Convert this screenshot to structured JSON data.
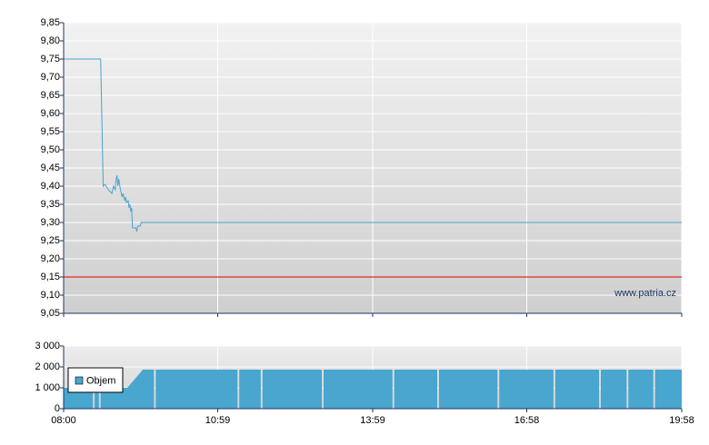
{
  "chart_data": [
    {
      "type": "line",
      "series": [
        {
          "color": "#4aa3cc",
          "x": [
            "08:00",
            "08:43",
            "08:46",
            "08:48",
            "08:52",
            "08:56",
            "08:58",
            "09:00",
            "09:01",
            "09:02",
            "09:03",
            "09:04",
            "09:06",
            "09:08",
            "09:09",
            "09:11",
            "09:12",
            "09:13",
            "09:15",
            "09:16",
            "09:17",
            "09:18",
            "09:19",
            "09:20",
            "09:24",
            "09:25",
            "09:26",
            "09:29",
            "09:30",
            "19:58"
          ],
          "values": [
            9.75,
            9.75,
            9.4,
            9.405,
            9.39,
            9.38,
            9.4,
            9.39,
            9.42,
            9.43,
            9.4,
            9.42,
            9.39,
            9.37,
            9.38,
            9.36,
            9.37,
            9.355,
            9.36,
            9.34,
            9.35,
            9.33,
            9.34,
            9.285,
            9.285,
            9.275,
            9.29,
            9.29,
            9.3,
            9.3
          ]
        }
      ],
      "reference_line": {
        "value": 9.15,
        "color": "#e00000"
      },
      "annotation": "www.patria.cz",
      "ylim": [
        9.05,
        9.85
      ],
      "yticks": [
        {
          "value": 9.05,
          "label": "9,05"
        },
        {
          "value": 9.1,
          "label": "9,10"
        },
        {
          "value": 9.15,
          "label": "9,15"
        },
        {
          "value": 9.2,
          "label": "9,20"
        },
        {
          "value": 9.25,
          "label": "9,25"
        },
        {
          "value": 9.3,
          "label": "9,30"
        },
        {
          "value": 9.35,
          "label": "9,35"
        },
        {
          "value": 9.4,
          "label": "9,40"
        },
        {
          "value": 9.45,
          "label": "9,45"
        },
        {
          "value": 9.5,
          "label": "9,50"
        },
        {
          "value": 9.55,
          "label": "9,55"
        },
        {
          "value": 9.6,
          "label": "9,60"
        },
        {
          "value": 9.65,
          "label": "9,65"
        },
        {
          "value": 9.7,
          "label": "9,70"
        },
        {
          "value": 9.75,
          "label": "9,75"
        },
        {
          "value": 9.8,
          "label": "9,80"
        },
        {
          "value": 9.85,
          "label": "9,85"
        }
      ],
      "xlim": [
        "08:00",
        "19:58"
      ],
      "xticks": [
        "08:00",
        "10:59",
        "13:59",
        "16:58",
        "19:58"
      ],
      "grid": true
    },
    {
      "type": "area",
      "series": [
        {
          "name": "Objem",
          "color": "#48a6cf",
          "x": [
            "08:00",
            "08:34",
            "08:35",
            "08:36",
            "08:41",
            "08:42",
            "08:43",
            "09:14",
            "09:32",
            "09:45",
            "09:46",
            "09:47",
            "11:22",
            "11:23",
            "11:24",
            "11:49",
            "11:50",
            "11:51",
            "13:00",
            "13:01",
            "13:02",
            "14:22",
            "14:23",
            "14:24",
            "15:14",
            "15:15",
            "15:16",
            "16:24",
            "16:25",
            "16:26",
            "17:29",
            "17:30",
            "17:31",
            "18:22",
            "18:23",
            "18:24",
            "18:54",
            "18:55",
            "18:56",
            "19:25",
            "19:26",
            "19:27",
            "19:58"
          ],
          "values": [
            1000,
            1000,
            null,
            1000,
            1000,
            null,
            1000,
            1000,
            1870,
            1870,
            null,
            1870,
            1870,
            null,
            1870,
            1870,
            null,
            1870,
            1870,
            null,
            1870,
            1870,
            null,
            1870,
            1870,
            null,
            1870,
            1870,
            null,
            1870,
            1870,
            null,
            1870,
            1870,
            null,
            1870,
            1870,
            null,
            1870,
            1870,
            null,
            1870,
            1870
          ]
        }
      ],
      "ylim": [
        0,
        3000
      ],
      "yticks": [
        0,
        {
          "value": 1000,
          "label": "1 000"
        },
        {
          "value": 2000,
          "label": "2 000"
        },
        {
          "value": 3000,
          "label": "3 000"
        }
      ],
      "legend": "upper left",
      "grid": true
    }
  ]
}
